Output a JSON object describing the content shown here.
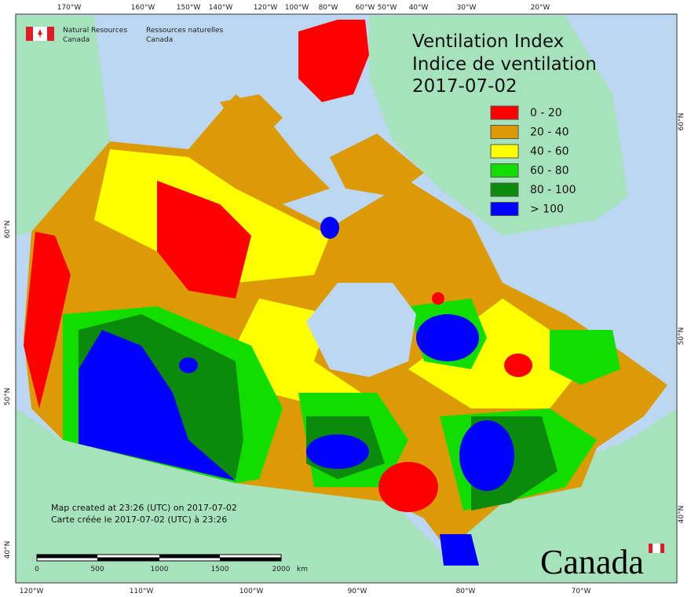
{
  "header": {
    "org_en": "Natural Resources",
    "org_en_2": "Canada",
    "org_fr": "Ressources naturelles",
    "org_fr_2": "Canada"
  },
  "title": {
    "line1": "Ventilation Index",
    "line2": "Indice de ventilation",
    "date": "2017-07-02"
  },
  "legend": [
    {
      "label": "0 - 20",
      "color": "#ff0000"
    },
    {
      "label": "20 - 40",
      "color": "#db9a06"
    },
    {
      "label": "40 - 60",
      "color": "#ffff00"
    },
    {
      "label": "60 - 80",
      "color": "#11dd00"
    },
    {
      "label": "80 - 100",
      "color": "#0b8a0b"
    },
    {
      "label": "> 100",
      "color": "#0000ff"
    }
  ],
  "top_longitudes": [
    "170°W",
    "160°W",
    "150°W",
    "140°W",
    "120°W",
    "100°W",
    "80°W",
    "60°W",
    "50°W",
    "40°W",
    "30°W",
    "20°W"
  ],
  "bottom_longitudes": [
    "120°W",
    "110°W",
    "100°W",
    "90°W",
    "80°W",
    "70°W"
  ],
  "left_latitudes": [
    "60°N",
    "50°N",
    "40°N"
  ],
  "right_latitudes": [
    "60°N",
    "50°N",
    "40°N"
  ],
  "footer": {
    "created_en": "Map created at 23:26 (UTC) on 2017-07-02",
    "created_fr": "Carte créée le 2017-07-02 (UTC) à 23:26"
  },
  "scale": {
    "ticks": [
      "0",
      "500",
      "1000",
      "1500",
      "2000"
    ],
    "unit": "km"
  },
  "wordmark": "Canada"
}
